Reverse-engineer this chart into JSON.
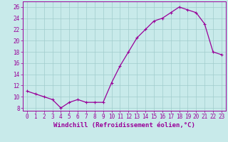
{
  "x": [
    0,
    1,
    2,
    3,
    4,
    5,
    6,
    7,
    8,
    9,
    10,
    11,
    12,
    13,
    14,
    15,
    16,
    17,
    18,
    19,
    20,
    21,
    22,
    23
  ],
  "y": [
    11,
    10.5,
    10,
    9.5,
    8,
    9,
    9.5,
    9,
    9,
    9,
    12.5,
    15.5,
    18,
    20.5,
    22,
    23.5,
    24,
    25,
    26,
    25.5,
    25,
    23,
    18,
    17.5
  ],
  "line_color": "#990099",
  "marker": "+",
  "marker_size": 3,
  "marker_lw": 0.8,
  "line_width": 0.9,
  "bg_color": "#c8eaea",
  "grid_color": "#a0cccc",
  "xlabel": "Windchill (Refroidissement éolien,°C)",
  "xlabel_color": "#990099",
  "ylabel_ticks": [
    8,
    10,
    12,
    14,
    16,
    18,
    20,
    22,
    24,
    26
  ],
  "xlim": [
    -0.5,
    23.5
  ],
  "ylim": [
    7.5,
    27
  ],
  "xticks": [
    0,
    1,
    2,
    3,
    4,
    5,
    6,
    7,
    8,
    9,
    10,
    11,
    12,
    13,
    14,
    15,
    16,
    17,
    18,
    19,
    20,
    21,
    22,
    23
  ],
  "tick_color": "#990099",
  "tick_fontsize": 5.5,
  "xlabel_fontsize": 6.5
}
